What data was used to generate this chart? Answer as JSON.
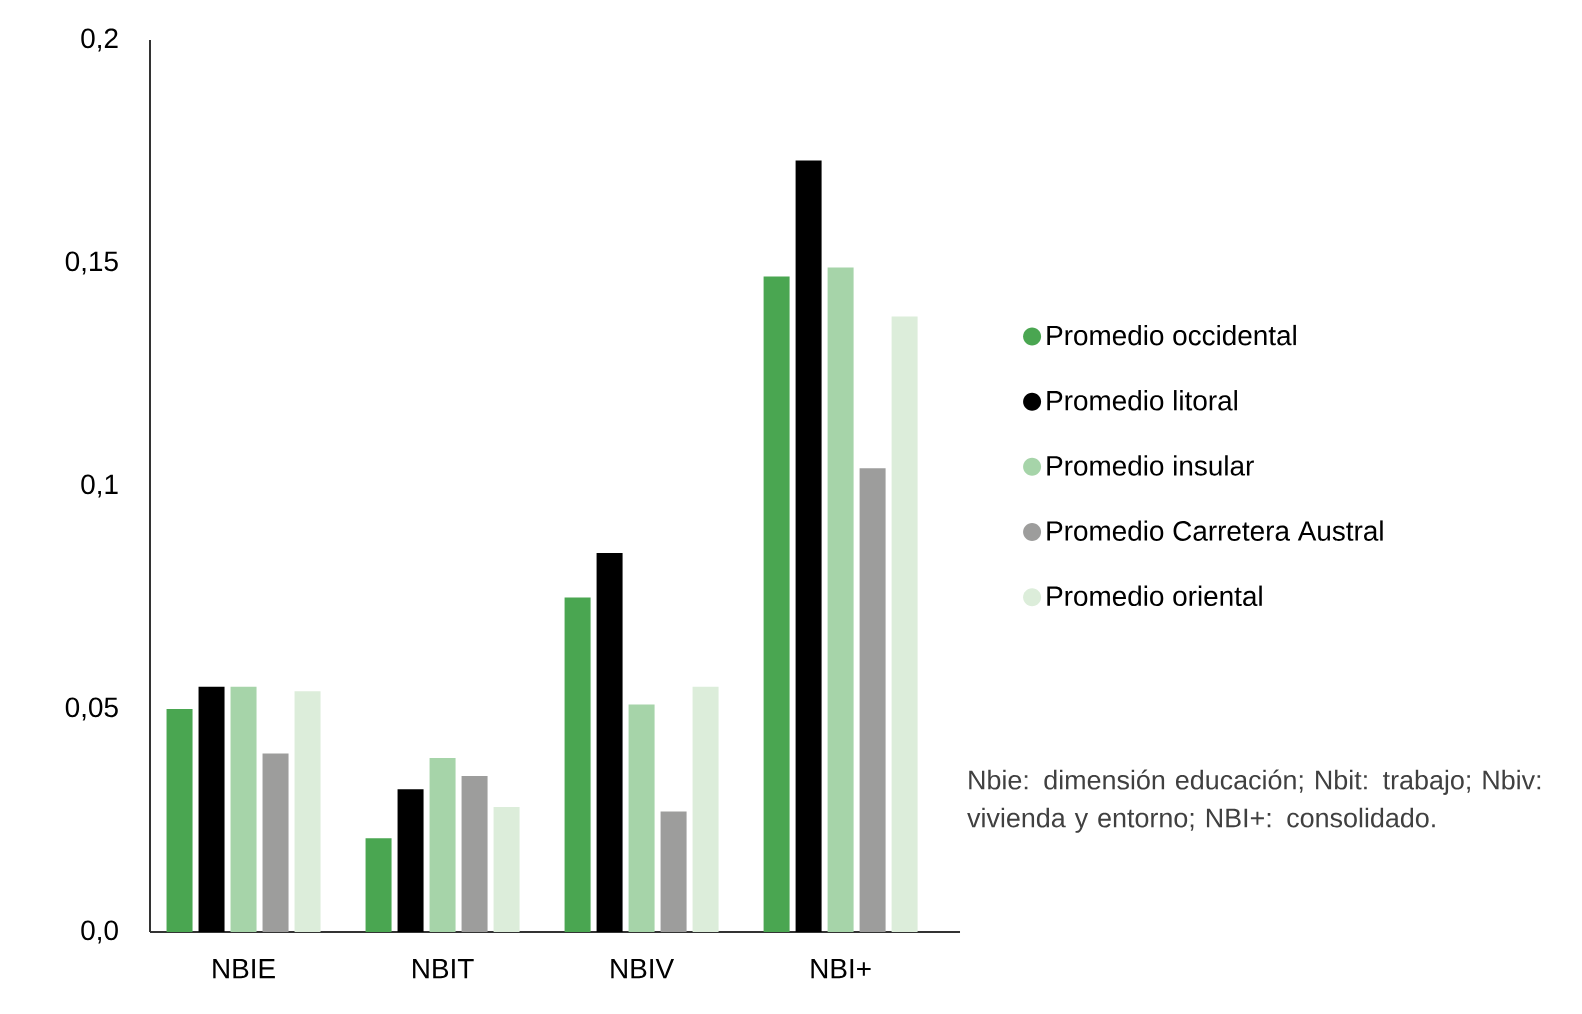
{
  "chart_data": {
    "type": "bar",
    "categories": [
      "NBIE",
      "NBIT",
      "NBIV",
      "NBI+"
    ],
    "series": [
      {
        "name": "Promedio occidental",
        "color": "#4aa651",
        "values": [
          0.05,
          0.021,
          0.075,
          0.147
        ]
      },
      {
        "name": "Promedio litoral",
        "color": "#000000",
        "values": [
          0.055,
          0.032,
          0.085,
          0.173
        ]
      },
      {
        "name": "Promedio insular",
        "color": "#a6d4a9",
        "values": [
          0.055,
          0.039,
          0.051,
          0.149
        ]
      },
      {
        "name": "Promedio Carretera Austral",
        "color": "#9d9d9c",
        "values": [
          0.04,
          0.035,
          0.027,
          0.104
        ]
      },
      {
        "name": "Promedio oriental",
        "color": "#dcedda",
        "values": [
          0.054,
          0.028,
          0.055,
          0.138
        ]
      }
    ],
    "ylim": [
      0,
      0.2
    ],
    "yticks": [
      {
        "value": 0,
        "label": "0,0"
      },
      {
        "value": 0.05,
        "label": "0,05"
      },
      {
        "value": 0.1,
        "label": "0,1"
      },
      {
        "value": 0.15,
        "label": "0,15"
      },
      {
        "value": 0.2,
        "label": "0,2"
      }
    ],
    "legend": "right",
    "grid": false,
    "annotations": [
      "Nbie: dimensión educación; Nbit: trabajo; Nbiv: vivienda y entorno; NBI+: consolidado."
    ]
  }
}
